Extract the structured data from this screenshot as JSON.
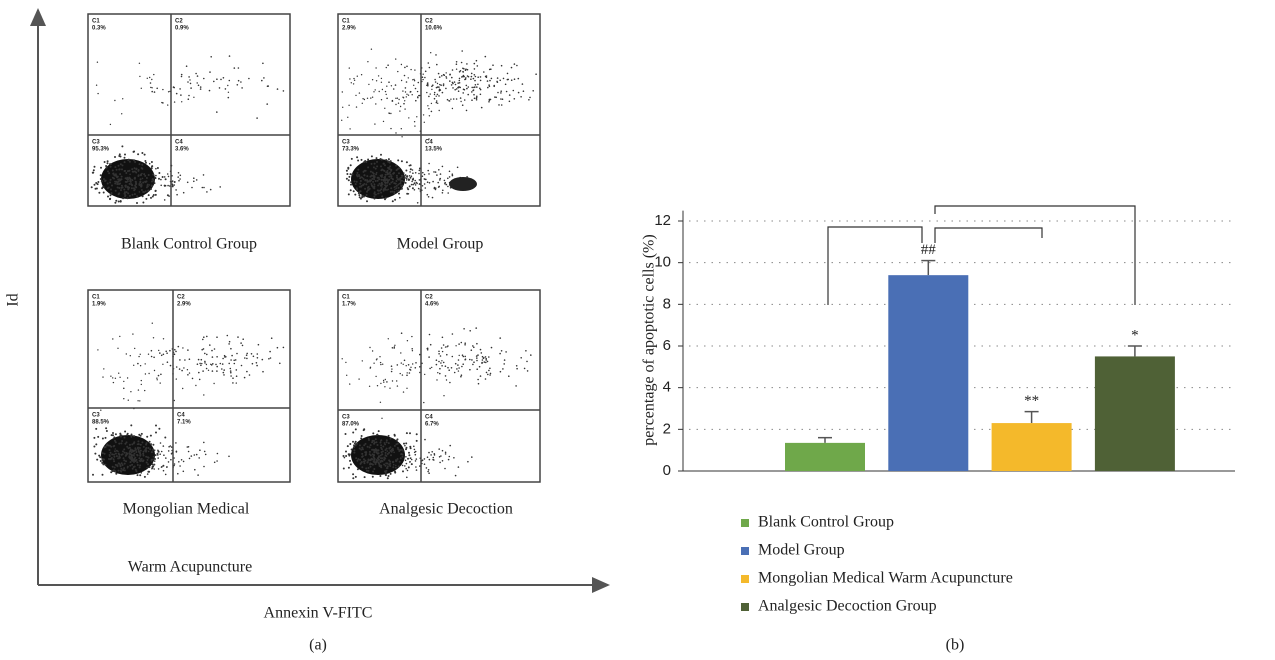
{
  "panel_a": {
    "y_axis_label": "Id",
    "x_axis_label": "Annexin V-FITC",
    "caption": "(a)",
    "plots": [
      {
        "label": "Blank Control Group",
        "quadrants": [
          {
            "name": "C1",
            "percent": "0.3%"
          },
          {
            "name": "C2",
            "percent": "0.9%"
          },
          {
            "name": "C3",
            "percent": "95.3%"
          },
          {
            "name": "C4",
            "percent": "3.6%"
          }
        ]
      },
      {
        "label": "Model Group",
        "quadrants": [
          {
            "name": "C1",
            "percent": "2.9%"
          },
          {
            "name": "C2",
            "percent": "10.6%"
          },
          {
            "name": "C3",
            "percent": "73.3%"
          },
          {
            "name": "C4",
            "percent": "13.5%"
          }
        ]
      },
      {
        "label": "Mongolian Medical",
        "quadrants": [
          {
            "name": "C1",
            "percent": "1.9%"
          },
          {
            "name": "C2",
            "percent": "2.9%"
          },
          {
            "name": "C3",
            "percent": "88.5%"
          },
          {
            "name": "C4",
            "percent": "7.1%"
          }
        ]
      },
      {
        "label": "Analgesic Decoction",
        "quadrants": [
          {
            "name": "C1",
            "percent": "1.7%"
          },
          {
            "name": "C2",
            "percent": "4.6%"
          },
          {
            "name": "C3",
            "percent": "87.0%"
          },
          {
            "name": "C4",
            "percent": "6.7%"
          }
        ]
      }
    ],
    "extra_label": "Warm Acupuncture"
  },
  "chart_data": {
    "type": "bar",
    "y_axis_label": "percentage of apoptotic cells (%)",
    "caption": "(b)",
    "categories": [
      "Blank Control Group",
      "Model Group",
      "Mongolian Medical Warm Acupuncture",
      "Analgesic Decoction Group"
    ],
    "values": [
      1.35,
      9.4,
      2.3,
      5.5
    ],
    "errors": [
      0.25,
      0.7,
      0.55,
      0.5
    ],
    "significance": [
      null,
      "##",
      "**",
      "*"
    ],
    "colors": [
      "#6fa84a",
      "#4a6fb5",
      "#f4b92b",
      "#4f6136"
    ],
    "ylim": [
      0,
      12.5
    ],
    "yticks": [
      0,
      2,
      4,
      6,
      8,
      10,
      12
    ],
    "grid": true
  }
}
